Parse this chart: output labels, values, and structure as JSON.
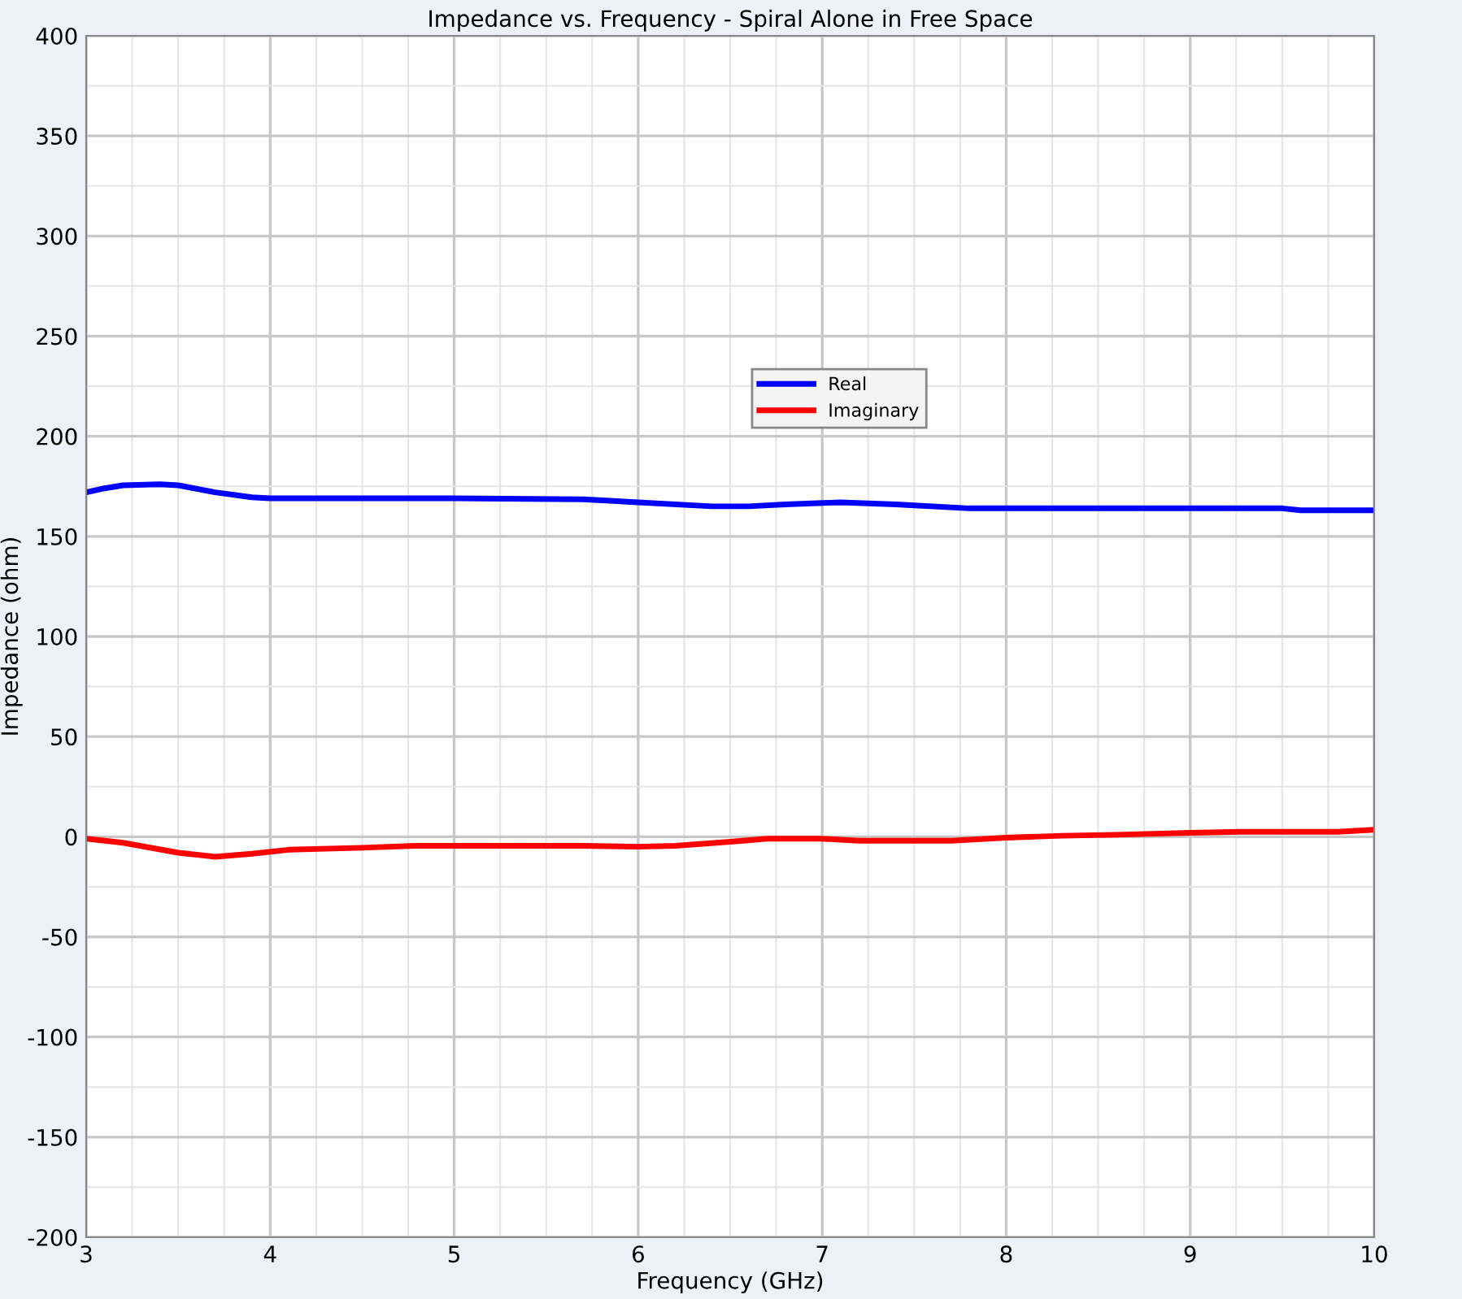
{
  "chart_data": {
    "type": "line",
    "title": "Impedance vs. Frequency - Spiral Alone in Free Space",
    "xlabel": "Frequency (GHz)",
    "ylabel": "Impedance (ohm)",
    "xlim": [
      3,
      10
    ],
    "xticks": [
      3,
      4,
      5,
      6,
      7,
      8,
      9,
      10
    ],
    "ylim": [
      -200,
      400
    ],
    "yticks": [
      -200,
      -150,
      -100,
      -50,
      0,
      50,
      100,
      150,
      200,
      250,
      300,
      350,
      400
    ],
    "grid": true,
    "legend": "center",
    "marker": "none",
    "line_style": "solid",
    "series": [
      {
        "name": "Real",
        "color": "#0000ff",
        "x": [
          3.0,
          3.1,
          3.2,
          3.4,
          3.5,
          3.7,
          3.9,
          4.0,
          5.0,
          5.7,
          6.0,
          6.4,
          6.6,
          6.8,
          7.1,
          7.4,
          7.8,
          8.5,
          9.5,
          9.6,
          10.0
        ],
        "values": [
          172,
          174,
          175.5,
          176,
          175.5,
          172,
          169.5,
          169,
          169,
          168.5,
          167,
          165,
          165,
          166,
          167,
          166,
          164,
          164,
          164,
          163,
          163
        ]
      },
      {
        "name": "Imaginary",
        "color": "#ff0000",
        "x": [
          3.0,
          3.2,
          3.5,
          3.7,
          3.9,
          4.1,
          4.5,
          4.8,
          5.5,
          5.7,
          6.0,
          6.2,
          6.5,
          6.7,
          7.0,
          7.2,
          7.7,
          8.0,
          8.3,
          8.6,
          9.0,
          9.3,
          9.8,
          10.0
        ],
        "values": [
          -1,
          -3,
          -8,
          -10,
          -8.5,
          -6.5,
          -5.5,
          -4.5,
          -4.5,
          -4.5,
          -5,
          -4.5,
          -2.5,
          -1,
          -1,
          -2,
          -2,
          -0.5,
          0.5,
          1,
          2,
          2.5,
          2.5,
          3.5
        ]
      }
    ]
  }
}
